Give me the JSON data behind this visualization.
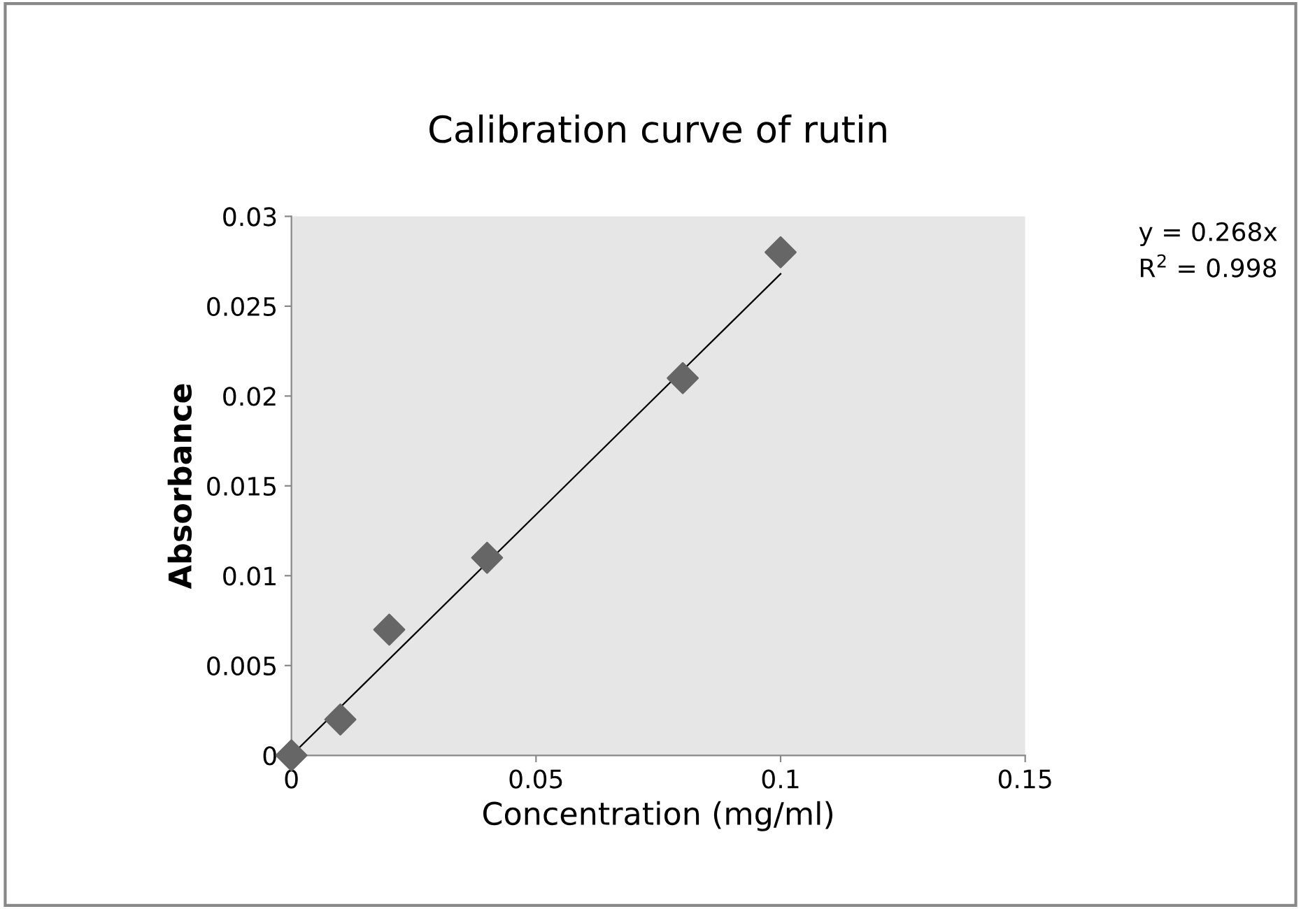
{
  "chart_data": {
    "type": "scatter",
    "title": "Calibration curve of rutin",
    "xlabel": "Concentration (mg/ml)",
    "ylabel": "Absorbance",
    "x": [
      0,
      0.01,
      0.02,
      0.04,
      0.08,
      0.1
    ],
    "series": [
      {
        "color": "#666666",
        "marker": "diamond",
        "values": [
          0,
          0.002,
          0.007,
          0.011,
          0.021,
          0.028
        ]
      },
      {
        "type": "line",
        "color": "#000000",
        "x": [
          0,
          0.1
        ],
        "values": [
          0,
          0.0268
        ],
        "marker": "none",
        "line_style": "solid"
      }
    ],
    "xlim": [
      0,
      0.15
    ],
    "xticks": [
      0,
      0.05,
      0.1,
      0.15
    ],
    "ylim": [
      0,
      0.03
    ],
    "yticks": [
      0,
      0.005,
      0.01,
      0.015,
      0.02,
      0.025,
      0.03
    ],
    "annotations": [
      "y = 0.268x",
      "R$^{2}$ = 0.998"
    ]
  }
}
